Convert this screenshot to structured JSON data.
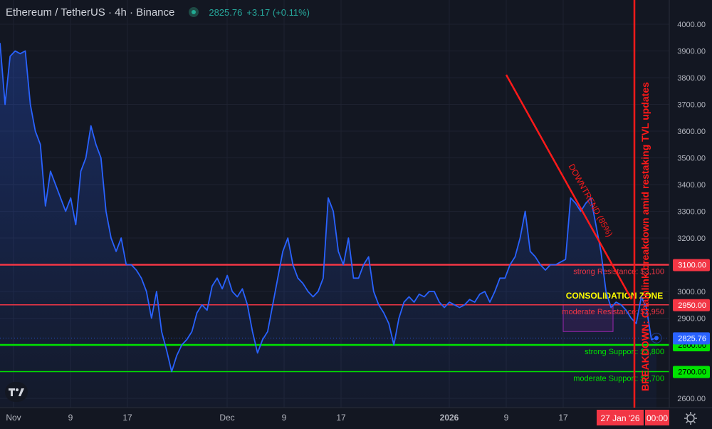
{
  "header": {
    "title": "Ethereum / TetherUS · 4h · Binance",
    "price": "2825.76",
    "change": "+3.17 (+0.11%)"
  },
  "colors": {
    "background": "#131722",
    "price_line": "#2962ff",
    "resistance": "#f23645",
    "support": "#00e400",
    "downtrend": "#ff1a1a",
    "consolidation_border": "#9c27b0",
    "consolidation_label": "#ffff00",
    "axis_text": "#b2b5be"
  },
  "icons": [
    "tradingview-logo-icon",
    "settings-gear-icon"
  ],
  "chart_data": {
    "type": "line",
    "x_axis": {
      "ticks": [
        "Nov",
        "9",
        "17",
        "Dec",
        "9",
        "17",
        "2026",
        "9",
        "17"
      ],
      "crosshair_label": "27 Jan '26",
      "crosshair_time": "00:00"
    },
    "y_axis": {
      "ticks": [
        "4000.00",
        "3900.00",
        "3800.00",
        "3700.00",
        "3600.00",
        "3500.00",
        "3400.00",
        "3300.00",
        "3200.00",
        "3100.00",
        "3000.00",
        "2900.00",
        "2800.00",
        "2700.00",
        "2600.00"
      ],
      "ylim": [
        2570,
        4050
      ],
      "scale": "linear",
      "position": "right",
      "grid": true
    },
    "series": [
      {
        "color": "#2962ff",
        "x_range": [
          "Oct 31",
          "Jan 27"
        ],
        "values": [
          3930,
          3700,
          3880,
          3900,
          3890,
          3900,
          3700,
          3600,
          3550,
          3320,
          3450,
          3400,
          3350,
          3300,
          3350,
          3250,
          3450,
          3500,
          3620,
          3550,
          3500,
          3300,
          3200,
          3150,
          3200,
          3100,
          3100,
          3080,
          3050,
          3000,
          2900,
          3000,
          2850,
          2780,
          2700,
          2760,
          2800,
          2820,
          2850,
          2920,
          2950,
          2930,
          3020,
          3050,
          3010,
          3060,
          3000,
          2980,
          3010,
          2950,
          2850,
          2770,
          2820,
          2850,
          2950,
          3050,
          3150,
          3200,
          3100,
          3050,
          3030,
          3000,
          2980,
          3000,
          3050,
          3350,
          3300,
          3150,
          3100,
          3200,
          3050,
          3050,
          3100,
          3130,
          3000,
          2950,
          2920,
          2880,
          2800,
          2900,
          2960,
          2980,
          2960,
          2990,
          2980,
          3000,
          3000,
          2960,
          2940,
          2960,
          2950,
          2940,
          2950,
          2970,
          2960,
          2990,
          3000,
          2960,
          3000,
          3050,
          3050,
          3100,
          3130,
          3200,
          3300,
          3150,
          3130,
          3100,
          3080,
          3100,
          3100,
          3110,
          3120,
          3350,
          3330,
          3300,
          3330,
          3350,
          3250,
          3150,
          3000,
          2940,
          2960,
          2950,
          2930,
          2900,
          2880,
          2980,
          2940,
          2820,
          2825.76
        ]
      }
    ],
    "current_price_label": "2825.76",
    "levels": [
      {
        "price": 3100,
        "label": "strong Resistance: $3,100",
        "axis_label": "3100.00",
        "color": "#f23645",
        "thick": true
      },
      {
        "price": 2950,
        "label": "moderate Resistance: $2,950",
        "axis_label": "2950.00",
        "color": "#f23645",
        "thick": false
      },
      {
        "price": 2800,
        "label": "strong Support: $2,800",
        "axis_label": "2800.00",
        "color": "#00e400",
        "thick": true
      },
      {
        "price": 2700,
        "label": "moderate Support: $2,700",
        "axis_label": "2700.00",
        "color": "#00e400",
        "thick": false
      }
    ],
    "annotations": {
      "downtrend_label": "DOWNTREND (85%)",
      "consolidation_label": "CONSOLIDATION ZONE",
      "consolidation_range": [
        2850,
        2950
      ],
      "breakdown_label": "BREAKDOWN: Chainlink breakdown amid restaking TVL updates"
    }
  }
}
